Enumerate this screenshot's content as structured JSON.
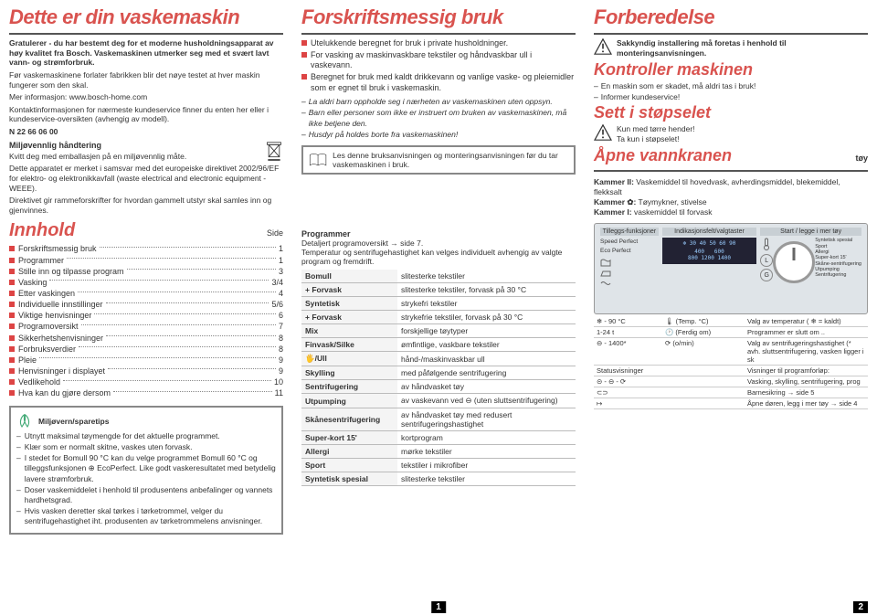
{
  "col1": {
    "title": "Dette er din vaskemaskin",
    "intro1": "Gratulerer - du har bestemt deg for et moderne husholdningsapparat av høy kvalitet fra Bosch. Vaskemaskinen utmerker seg med et svært lavt vann- og strømforbruk.",
    "intro2": "Før vaskemaskinene forlater fabrikken blir det nøye testet at hver maskin fungerer som den skal.",
    "info_label": "Mer informasjon:",
    "info_url": "www.bosch-home.com",
    "contact": "Kontaktinformasjonen for nærmeste kundeservice finner du enten her eller i kundeservice-oversikten (avhengig av modell).",
    "phone": "N 22 66 06 00",
    "env_head": "Miljøvennlig håndtering",
    "env1": "Kvitt deg med emballasjen på en miljøvennlig måte.",
    "env2": "Dette apparatet er merket i samsvar med det europeiske direktivet 2002/96/EF for elektro- og elektronikkavfall (waste electrical and electronic equipment - WEEE).",
    "env3": "Direktivet gir rammeforskrifter for hvordan gammelt utstyr skal samles inn og gjenvinnes.",
    "toc_title": "Innhold",
    "toc_side": "Side",
    "toc": [
      {
        "t": "Forskriftsmessig bruk",
        "p": "1"
      },
      {
        "t": "Programmer",
        "p": "1"
      },
      {
        "t": "Stille inn og tilpasse program",
        "p": "3"
      },
      {
        "t": "Vasking",
        "p": "3/4"
      },
      {
        "t": "Etter vaskingen",
        "p": "4"
      },
      {
        "t": "Individuelle innstillinger",
        "p": "5/6"
      },
      {
        "t": "Viktige henvisninger",
        "p": "6"
      },
      {
        "t": "Programoversikt",
        "p": "7"
      },
      {
        "t": "Sikkerhetshenvisninger",
        "p": "8"
      },
      {
        "t": "Forbruksverdier",
        "p": "8"
      },
      {
        "t": "Pleie",
        "p": "9"
      },
      {
        "t": "Henvisninger i displayet",
        "p": "9"
      },
      {
        "t": "Vedlikehold",
        "p": "10"
      },
      {
        "t": "Hva kan du gjøre dersom",
        "p": "11"
      }
    ],
    "eco_head": "Miljøvern/sparetips",
    "eco": [
      "Utnytt maksimal tøymengde for det aktuelle programmet.",
      "Klær som er normalt skitne, vaskes uten forvask.",
      "I stedet for Bomull 90 °C kan du velge programmet Bomull 60 °C og tilleggsfunksjonen ⊕ EcoPerfect. Like godt vaskeresultatet med betydelig lavere strømforbruk.",
      "Doser vaskemiddelet i henhold til produsentens anbefalinger og vannets hardhetsgrad.",
      "Hvis vasken deretter skal tørkes i tørketrommel, velger du sentrifugehastighet iht. produsenten av tørketrommelens anvisninger."
    ]
  },
  "col2": {
    "title": "Forskriftsmessig bruk",
    "use": [
      "Utelukkende beregnet for bruk i private husholdninger.",
      "For vasking av maskinvaskbare tekstiler og håndvaskbar ull i vaskevann.",
      "Beregnet for bruk med kaldt drikkevann og vanlige vaske- og pleiemidler som er egnet til bruk i vaskemaskin."
    ],
    "warn": [
      "La aldri barn oppholde seg i nærheten av vaskemaskinen uten oppsyn.",
      "Barn eller personer som ikke er instruert om bruken av vaskemaskinen, må ikke betjene den.",
      "Husdyr på holdes borte fra vaskemaskinen!"
    ],
    "manual": "Les denne bruksanvisningen og monteringsanvisningen før du tar vaskemaskinen i bruk.",
    "prog_head": "Programmer",
    "prog_sub1": "Detaljert programoversikt → side 7.",
    "prog_sub2": "Temperatur og sentrifugehastighet kan velges individuelt avhengig av valgte program og fremdrift.",
    "programs": [
      {
        "n": "Bomull",
        "d": "slitesterke tekstiler"
      },
      {
        "n": "+ Forvask",
        "d": "slitesterke tekstiler, forvask på 30 °C"
      },
      {
        "n": "Syntetisk",
        "d": "strykefri tekstiler"
      },
      {
        "n": "+ Forvask",
        "d": "strykefrie tekstiler, forvask på 30 °C"
      },
      {
        "n": "Mix",
        "d": "forskjellige tøytyper"
      },
      {
        "n": "Finvask/Silke",
        "d": "ømfintlige, vaskbare tekstiler"
      },
      {
        "n": "🖐/Ull",
        "d": "hånd-/maskinvaskbar ull"
      },
      {
        "n": "Skylling",
        "d": "med påfølgende sentrifugering"
      },
      {
        "n": "Sentrifugering",
        "d": "av håndvasket tøy"
      },
      {
        "n": "Utpumping",
        "d": "av vaskevann ved ⊖ (uten sluttsentrifugering)"
      },
      {
        "n": "Skånesentrifugering",
        "d": "av håndvasket tøy med redusert sentrifugeringshastighet"
      },
      {
        "n": "Super-kort 15'",
        "d": "kortprogram"
      },
      {
        "n": "Allergi",
        "d": "mørke tekstiler"
      },
      {
        "n": "Sport",
        "d": "tekstiler i mikrofiber"
      },
      {
        "n": "Syntetisk spesial",
        "d": "slitesterke tekstiler"
      }
    ],
    "pagenum": "1"
  },
  "col3": {
    "title": "Forberedelse",
    "prep_warn": "Sakkyndig installering må foretas i henhold til monteringsanvisningen.",
    "h_kontroll": "Kontroller maskinen",
    "kontroll": [
      "En maskin som er skadet, må aldri tas i bruk!",
      "Informer kundeservice!"
    ],
    "h_plug": "Sett i støpselet",
    "plug": [
      "Kun med tørre hender!",
      "Ta kun i støpselet!"
    ],
    "h_water": "Åpne vannkranen",
    "toy": "tøy",
    "kammer_text": "Kammer II: Vaskemiddel til hovedvask, avherdingsmiddel, blekemiddel, flekksalt\nKammer ✿: Tøymykner, stivelse\nKammer I: vaskemiddel til forvask",
    "panel": {
      "h1": "Tilleggs-funksjoner",
      "h2": "Indikasjonsfelt/valgtaster",
      "h3": "Start / legge i mer tøy",
      "sp": "Speed Perfect",
      "ep": "Eco Perfect",
      "temps": "30 40 50 60 90",
      "rpm": "400   600\n800 1200 1400",
      "prognames": "Syntetisk spesial\nSport\nAllergi\nSuper-kort 15'\nSkåne-sentrifugering\nUtpumping\nSentrifugering"
    },
    "legend": [
      {
        "a": "❄ - 90 °C",
        "b": "🌡 (Temp. °C)",
        "c": "Valg av temperatur ( ❄ = kaldt)"
      },
      {
        "a": "1-24 t",
        "b": "🕐 (Ferdig om)",
        "c": "Programmer er slutt om .."
      },
      {
        "a": "⊖ - 1400*",
        "b": "⟳ (o/min)",
        "c": "Valg av sentrifugeringshastighet (* avh. sluttsentrifugering, vasken ligger i sk"
      },
      {
        "a": "Statusvisninger",
        "b": "",
        "c": "Visninger til programforløp:"
      },
      {
        "a": "⊝ - ⊖ - ⟳",
        "b": "",
        "c": "Vasking, skylling, sentrifugering, prog"
      },
      {
        "a": "⊂⊃",
        "b": "",
        "c": "Barnesikring → side 5"
      },
      {
        "a": "↦",
        "b": "",
        "c": "Åpne døren, legg i mer tøy → side 4"
      }
    ],
    "pagenum": "2"
  },
  "colors": {
    "accent": "#d9534f",
    "headline": "#555",
    "panel_bg": "#dfe4e8"
  }
}
